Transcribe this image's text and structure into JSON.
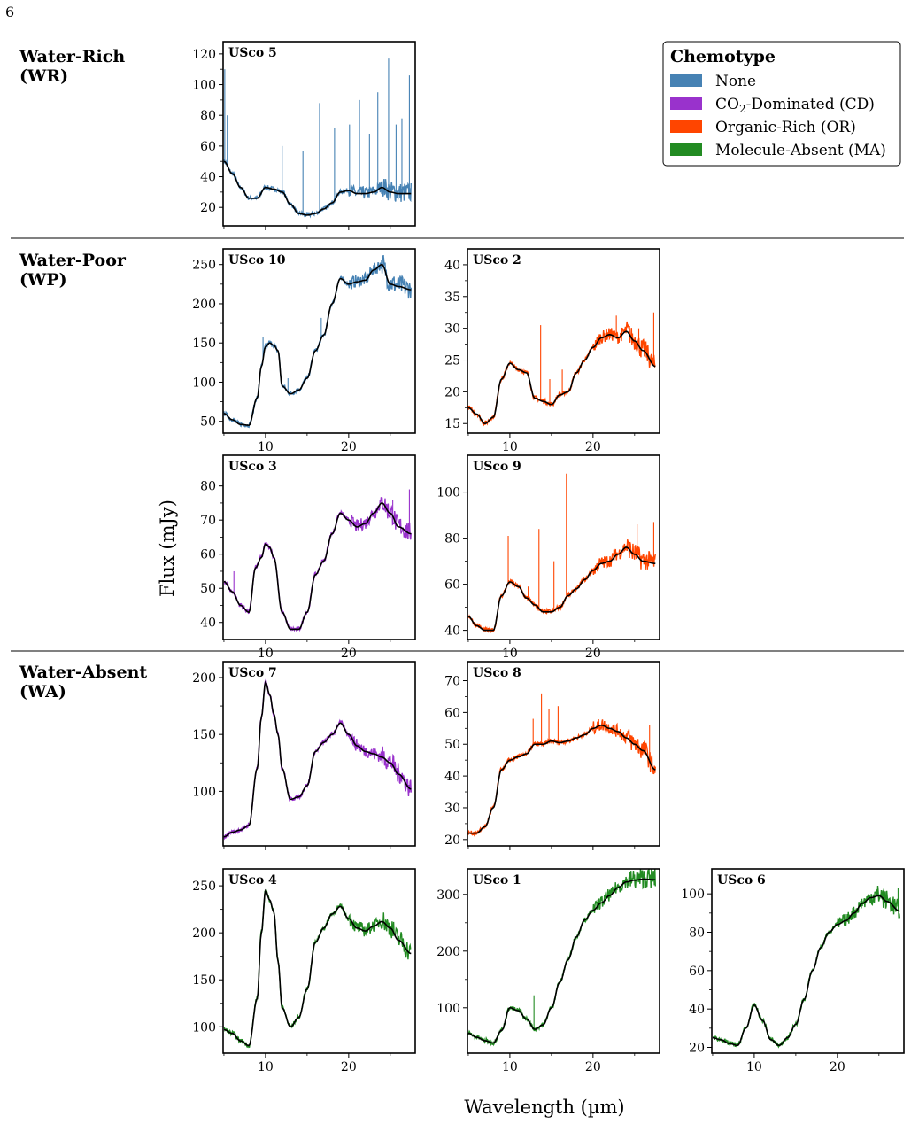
{
  "page_number": "6",
  "colors": {
    "none": "#4682b4",
    "cd": "#9932cc",
    "or": "#ff4500",
    "ma": "#228b22",
    "model": "#000000",
    "divider": "#000000"
  },
  "legend": {
    "title": "Chemotype",
    "entries": [
      {
        "label": "None",
        "color": "#4682b4"
      },
      {
        "label": "CO2-Dominated (CD)",
        "color": "#9932cc"
      },
      {
        "label": "Organic-Rich (OR)",
        "color": "#ff4500"
      },
      {
        "label": "Molecule-Absent (MA)",
        "color": "#228b22"
      }
    ]
  },
  "groups": [
    {
      "name": "Water-Rich",
      "abbr": "(WR)"
    },
    {
      "name": "Water-Poor",
      "abbr": "(WP)"
    },
    {
      "name": "Water-Absent",
      "abbr": "(WA)"
    }
  ],
  "ylabel": "Flux (mJy)",
  "xlabel": "Wavelength (µm)",
  "chart_data": [
    {
      "type": "line",
      "title": "USco 5",
      "group": "Water-Rich",
      "chemotype": "None",
      "xlim": [
        4.9,
        28
      ],
      "ylim": [
        8,
        128
      ],
      "yticks": [
        20,
        40,
        60,
        80,
        100,
        120
      ],
      "xticks": [
        10,
        20
      ],
      "x": [
        5,
        6,
        7,
        8,
        9,
        10,
        11,
        12,
        13,
        14,
        15,
        16,
        17,
        18,
        19,
        20,
        21,
        22,
        23,
        24,
        25,
        26,
        27.5
      ],
      "model": [
        50,
        42,
        33,
        26,
        26,
        33,
        32,
        30,
        22,
        16,
        15,
        16,
        19,
        23,
        30,
        31,
        29,
        29,
        30,
        33,
        30,
        29,
        29
      ],
      "spikes": [
        [
          5.1,
          110
        ],
        [
          5.4,
          80
        ],
        [
          12,
          60
        ],
        [
          14.5,
          57
        ],
        [
          16.5,
          88
        ],
        [
          18.3,
          72
        ],
        [
          20.1,
          74
        ],
        [
          21.3,
          90
        ],
        [
          22.5,
          68
        ],
        [
          23.5,
          95
        ],
        [
          24.8,
          117
        ],
        [
          25.7,
          74
        ],
        [
          26.4,
          78
        ],
        [
          27.3,
          106
        ]
      ]
    },
    {
      "type": "line",
      "title": "USco 10",
      "group": "Water-Poor",
      "chemotype": "None",
      "xlim": [
        4.9,
        28
      ],
      "ylim": [
        35,
        270
      ],
      "yticks": [
        50,
        100,
        150,
        200,
        250
      ],
      "xticks": [
        10,
        20
      ],
      "x": [
        5,
        6,
        7,
        8,
        9,
        9.5,
        10,
        10.5,
        11,
        11.5,
        12,
        13,
        14,
        15,
        16,
        17,
        18,
        19,
        20,
        21,
        22,
        23,
        24,
        25,
        26,
        27.5
      ],
      "model": [
        60,
        52,
        46,
        45,
        80,
        120,
        145,
        150,
        147,
        140,
        95,
        85,
        90,
        105,
        140,
        160,
        200,
        232,
        225,
        228,
        230,
        243,
        250,
        225,
        222,
        218
      ],
      "spikes": [
        [
          9.7,
          158
        ],
        [
          12.7,
          105
        ],
        [
          16.7,
          182
        ],
        [
          24.2,
          262
        ]
      ]
    },
    {
      "type": "line",
      "title": "USco 2",
      "group": "Water-Poor",
      "chemotype": "Organic-Rich (OR)",
      "xlim": [
        4.9,
        28
      ],
      "ylim": [
        13.5,
        42.5
      ],
      "yticks": [
        15,
        20,
        25,
        30,
        35,
        40
      ],
      "xticks": [
        10,
        20
      ],
      "x": [
        5,
        6,
        7,
        8,
        9,
        10,
        11,
        12,
        13,
        14,
        15,
        16,
        17,
        18,
        19,
        20,
        21,
        22,
        23,
        24,
        25,
        26,
        27.5
      ],
      "model": [
        17.5,
        16.5,
        15,
        16,
        22,
        24.5,
        23.5,
        23,
        19,
        18.5,
        18,
        19.5,
        20,
        23,
        25,
        27,
        28.5,
        29,
        28.5,
        29.5,
        28,
        26.5,
        24
      ],
      "spikes": [
        [
          13.7,
          30.5
        ],
        [
          14.8,
          22
        ],
        [
          16.3,
          23.5
        ],
        [
          22.8,
          32
        ],
        [
          25.5,
          30
        ],
        [
          27.3,
          32.5
        ]
      ]
    },
    {
      "type": "line",
      "title": "USco 3",
      "group": "Water-Poor",
      "chemotype": "CO2-Dominated (CD)",
      "xlim": [
        4.9,
        28
      ],
      "ylim": [
        35,
        89
      ],
      "yticks": [
        40,
        50,
        60,
        70,
        80
      ],
      "xticks": [
        10,
        20
      ],
      "x": [
        5,
        6,
        7,
        8,
        8.8,
        9.5,
        10,
        10.5,
        11,
        12,
        13,
        14,
        15,
        16,
        17,
        18,
        19,
        20,
        21,
        22,
        23,
        24,
        25,
        26,
        27.5
      ],
      "model": [
        52,
        49,
        45,
        43,
        56,
        59,
        63,
        62,
        59,
        43,
        38,
        38,
        43,
        54,
        58,
        66,
        72,
        70,
        68,
        69,
        72,
        75,
        72,
        68,
        66
      ],
      "spikes": [
        [
          6.2,
          55
        ],
        [
          25.3,
          76
        ],
        [
          27.3,
          79
        ]
      ]
    },
    {
      "type": "line",
      "title": "USco 9",
      "group": "Water-Poor",
      "chemotype": "Organic-Rich (OR)",
      "xlim": [
        4.9,
        28
      ],
      "ylim": [
        36,
        116
      ],
      "yticks": [
        40,
        60,
        80,
        100
      ],
      "xticks": [
        10,
        20
      ],
      "x": [
        5,
        6,
        7,
        8,
        9,
        10,
        11,
        12,
        13,
        14,
        15,
        16,
        17,
        18,
        19,
        20,
        21,
        22,
        23,
        24,
        25,
        26,
        27.5
      ],
      "model": [
        46,
        42,
        40,
        40,
        55,
        61,
        59,
        54,
        51,
        48,
        48,
        50,
        55,
        58,
        62,
        66,
        69,
        70,
        73,
        76,
        73,
        70,
        69
      ],
      "spikes": [
        [
          9.8,
          81
        ],
        [
          12.2,
          59
        ],
        [
          13.5,
          84
        ],
        [
          15.3,
          70
        ],
        [
          16.8,
          108
        ],
        [
          22.5,
          75
        ],
        [
          25.3,
          86
        ],
        [
          27.3,
          87
        ]
      ]
    },
    {
      "type": "line",
      "title": "USco 7",
      "group": "Water-Absent",
      "chemotype": "CO2-Dominated (CD)",
      "xlim": [
        4.9,
        28
      ],
      "ylim": [
        52,
        214
      ],
      "yticks": [
        100,
        150,
        200
      ],
      "xticks": [
        10,
        20
      ],
      "x": [
        5,
        6,
        7,
        8,
        9,
        9.5,
        10,
        10.5,
        11,
        11.5,
        12,
        13,
        14,
        15,
        16,
        17,
        18,
        19,
        20,
        21,
        22,
        23,
        24,
        25,
        26,
        27.5
      ],
      "model": [
        60,
        64,
        66,
        70,
        120,
        165,
        196,
        185,
        168,
        150,
        120,
        93,
        95,
        105,
        135,
        143,
        150,
        160,
        150,
        140,
        135,
        133,
        130,
        125,
        115,
        102
      ],
      "spikes": []
    },
    {
      "type": "line",
      "title": "USco 8",
      "group": "Water-Absent",
      "chemotype": "Organic-Rich (OR)",
      "xlim": [
        4.9,
        28
      ],
      "ylim": [
        18,
        76
      ],
      "yticks": [
        20,
        30,
        40,
        50,
        60,
        70
      ],
      "xticks": [
        10,
        20
      ],
      "x": [
        5,
        6,
        7,
        8,
        9,
        10,
        11,
        12,
        13,
        14,
        15,
        16,
        17,
        18,
        19,
        20,
        21,
        22,
        23,
        24,
        25,
        26,
        27.5
      ],
      "model": [
        22,
        22,
        24,
        30,
        42,
        45,
        46,
        47,
        50,
        50,
        51,
        50.5,
        51,
        52,
        53,
        55,
        56,
        55,
        54,
        52,
        50,
        48,
        42
      ],
      "spikes": [
        [
          12.8,
          58
        ],
        [
          13.8,
          66
        ],
        [
          14.7,
          61
        ],
        [
          15.8,
          62
        ],
        [
          26.8,
          56
        ]
      ]
    },
    {
      "type": "line",
      "title": "USco 4",
      "group": "Water-Absent",
      "chemotype": "Molecule-Absent (MA)",
      "xlim": [
        4.9,
        28
      ],
      "ylim": [
        72,
        268
      ],
      "yticks": [
        100,
        150,
        200,
        250
      ],
      "xticks": [
        10,
        20
      ],
      "x": [
        5,
        6,
        7,
        8,
        9,
        9.5,
        10,
        10.5,
        11,
        11.5,
        12,
        13,
        14,
        15,
        16,
        17,
        18,
        19,
        20,
        21,
        22,
        23,
        24,
        25,
        26,
        27.5
      ],
      "model": [
        97,
        93,
        85,
        80,
        130,
        200,
        245,
        235,
        222,
        170,
        120,
        100,
        110,
        140,
        190,
        205,
        220,
        228,
        215,
        205,
        202,
        207,
        212,
        205,
        192,
        178
      ],
      "spikes": []
    },
    {
      "type": "line",
      "title": "USco 1",
      "group": "Water-Absent",
      "chemotype": "Molecule-Absent (MA)",
      "xlim": [
        4.9,
        28
      ],
      "ylim": [
        20,
        345
      ],
      "yticks": [
        100,
        200,
        300
      ],
      "xticks": [
        10,
        20
      ],
      "x": [
        5,
        6,
        7,
        8,
        9,
        10,
        11,
        12,
        13,
        14,
        15,
        16,
        17,
        18,
        19,
        20,
        21,
        22,
        23,
        24,
        25,
        26,
        27.5
      ],
      "model": [
        55,
        48,
        42,
        38,
        60,
        100,
        95,
        80,
        62,
        70,
        100,
        145,
        185,
        225,
        255,
        272,
        285,
        298,
        312,
        322,
        325,
        327,
        326
      ],
      "spikes": [
        [
          6.8,
          45
        ],
        [
          7.3,
          45
        ],
        [
          12.9,
          122
        ]
      ]
    },
    {
      "type": "line",
      "title": "USco 6",
      "group": "Water-Absent",
      "chemotype": "Molecule-Absent (MA)",
      "xlim": [
        4.9,
        28
      ],
      "ylim": [
        17,
        113
      ],
      "yticks": [
        20,
        40,
        60,
        80,
        100
      ],
      "xticks": [
        10,
        20
      ],
      "x": [
        5,
        6,
        7,
        8,
        9,
        10,
        11,
        12,
        13,
        14,
        15,
        16,
        17,
        18,
        19,
        20,
        21,
        22,
        23,
        24,
        25,
        26,
        27.5
      ],
      "model": [
        25,
        24,
        22,
        21,
        30,
        42,
        34,
        24,
        21,
        25,
        32,
        45,
        60,
        72,
        80,
        84,
        86,
        90,
        95,
        98,
        99,
        96,
        91
      ],
      "spikes": [
        [
          27.3,
          103
        ]
      ]
    }
  ]
}
